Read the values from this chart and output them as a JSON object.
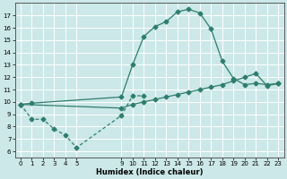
{
  "xlabel": "Humidex (Indice chaleur)",
  "bg_color": "#cce8e8",
  "grid_color": "#ffffff",
  "line_color": "#2e7d6e",
  "line1_x": [
    0,
    1,
    9,
    10,
    11,
    12,
    13,
    14,
    15,
    16,
    17,
    18,
    19,
    20,
    21,
    22,
    23
  ],
  "line1_y": [
    9.8,
    9.9,
    10.4,
    13.0,
    15.3,
    16.1,
    16.5,
    17.3,
    17.5,
    17.2,
    15.9,
    13.3,
    11.9,
    11.4,
    11.5,
    11.4,
    11.5
  ],
  "line2_x": [
    0,
    1,
    2,
    3,
    4,
    5,
    9,
    10,
    11
  ],
  "line2_y": [
    9.8,
    8.6,
    8.6,
    7.8,
    7.3,
    6.3,
    8.9,
    10.5,
    10.5
  ],
  "line3_x": [
    0,
    9,
    10,
    11,
    12,
    13,
    14,
    15,
    16,
    17,
    18,
    19,
    20,
    21,
    22,
    23
  ],
  "line3_y": [
    9.8,
    9.5,
    9.8,
    10.0,
    10.2,
    10.4,
    10.6,
    10.8,
    11.0,
    11.2,
    11.4,
    11.7,
    12.0,
    12.3,
    11.3,
    11.5
  ],
  "xlim": [
    -0.5,
    23.5
  ],
  "ylim": [
    5.5,
    18.0
  ],
  "yticks": [
    6,
    7,
    8,
    9,
    10,
    11,
    12,
    13,
    14,
    15,
    16,
    17
  ],
  "xticks": [
    0,
    1,
    2,
    3,
    4,
    5,
    9,
    10,
    11,
    12,
    13,
    14,
    15,
    16,
    17,
    18,
    19,
    20,
    21,
    22,
    23
  ],
  "xticklabels": [
    "0",
    "1",
    "2",
    "3",
    "4",
    "5",
    "9",
    "10",
    "11",
    "12",
    "13",
    "14",
    "15",
    "16",
    "17",
    "18",
    "19",
    "20",
    "21",
    "22",
    "23"
  ]
}
